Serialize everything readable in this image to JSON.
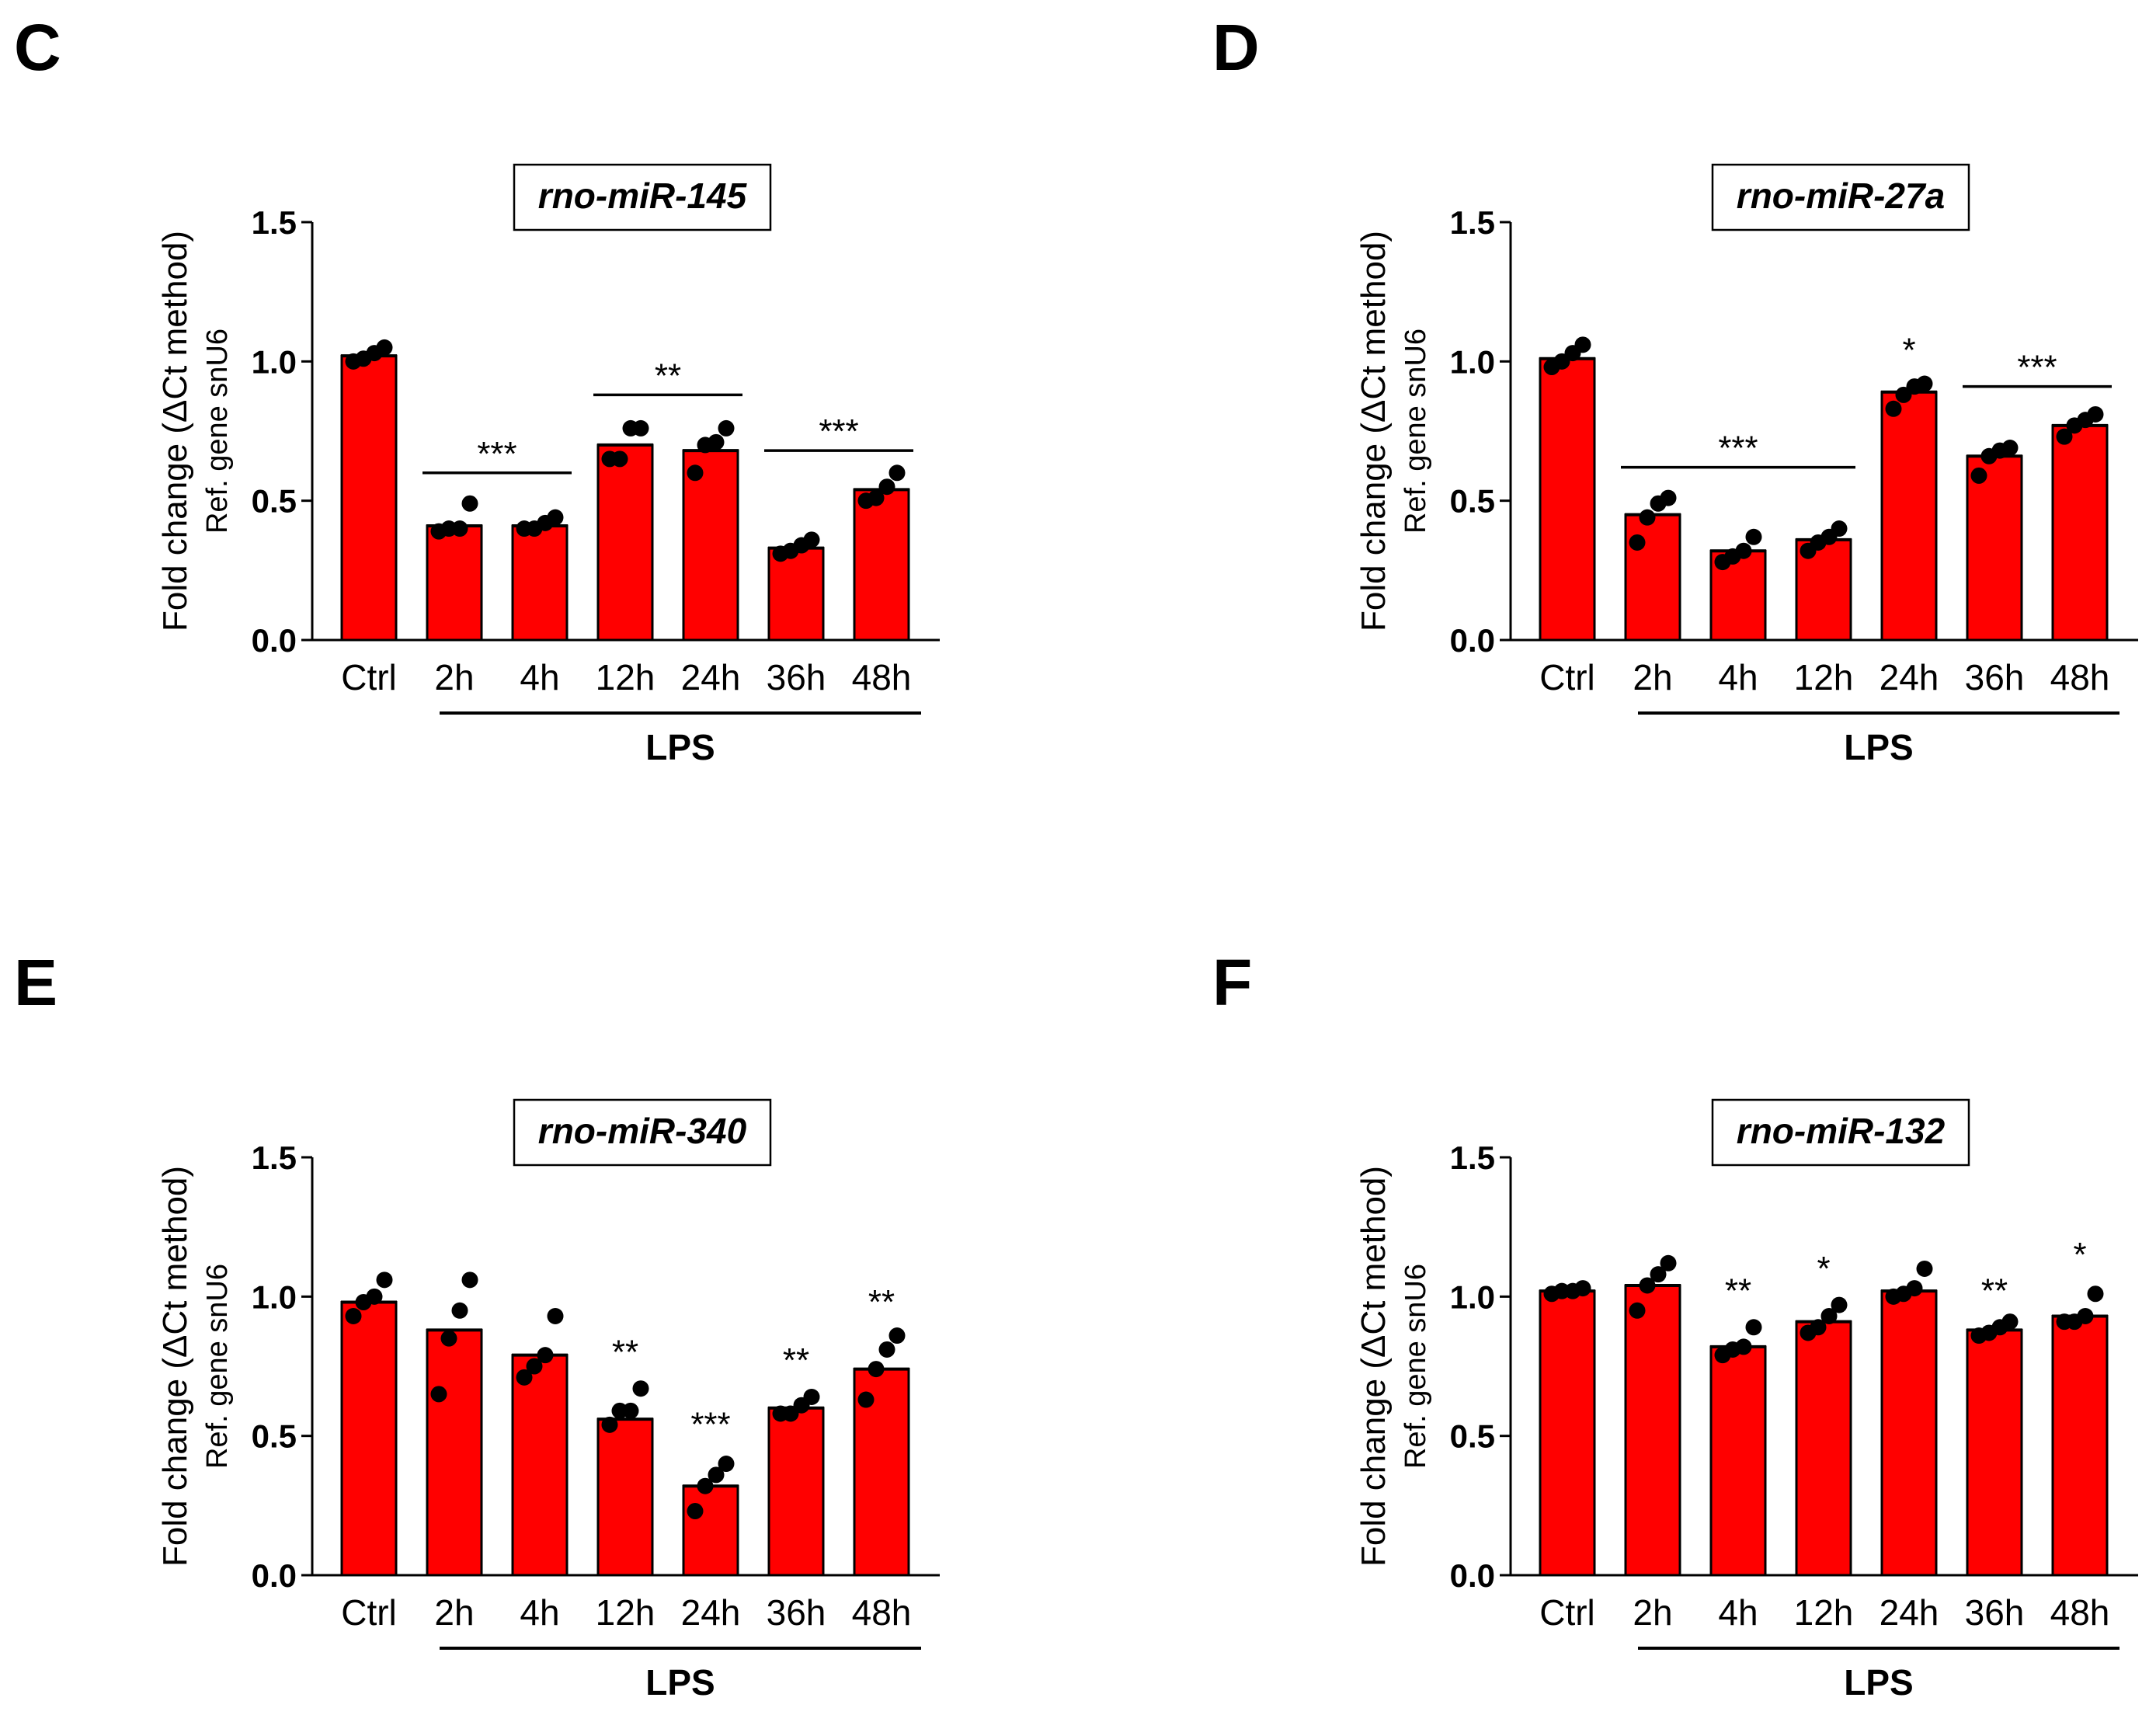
{
  "chart_data": [
    {
      "type": "bar",
      "panel_letter": "C",
      "title": "rno-miR-145",
      "ylabel_line1": "Fold change (ΔCt method)",
      "ylabel_line2": "Ref. gene snU6",
      "categories": [
        "Ctrl",
        "2h",
        "4h",
        "12h",
        "24h",
        "36h",
        "48h"
      ],
      "values": [
        1.02,
        0.41,
        0.41,
        0.7,
        0.68,
        0.33,
        0.54
      ],
      "points": [
        [
          1.0,
          1.01,
          1.03,
          1.05
        ],
        [
          0.39,
          0.4,
          0.4,
          0.49
        ],
        [
          0.4,
          0.4,
          0.42,
          0.44
        ],
        [
          0.65,
          0.65,
          0.76,
          0.76
        ],
        [
          0.6,
          0.7,
          0.71,
          0.76
        ],
        [
          0.31,
          0.32,
          0.34,
          0.36
        ],
        [
          0.5,
          0.51,
          0.55,
          0.6
        ]
      ],
      "ylim": [
        0,
        1.5
      ],
      "yticks": [
        "0.0",
        "0.5",
        "1.0",
        "1.5"
      ],
      "group_label": "LPS",
      "significance": [
        {
          "label": "***",
          "type": "line",
          "from": 1,
          "to": 2,
          "y": 0.6
        },
        {
          "label": "**",
          "type": "line",
          "from": 3,
          "to": 4,
          "y": 0.88
        },
        {
          "label": "***",
          "type": "line",
          "from": 5,
          "to": 6,
          "y": 0.68
        }
      ],
      "bar_color": "#ff0000",
      "point_color": "#000000"
    },
    {
      "type": "bar",
      "panel_letter": "D",
      "title": "rno-miR-27a",
      "ylabel_line1": "Fold change (ΔCt method)",
      "ylabel_line2": "Ref. gene snU6",
      "categories": [
        "Ctrl",
        "2h",
        "4h",
        "12h",
        "24h",
        "36h",
        "48h"
      ],
      "values": [
        1.01,
        0.45,
        0.32,
        0.36,
        0.89,
        0.66,
        0.77
      ],
      "points": [
        [
          0.98,
          1.0,
          1.03,
          1.06
        ],
        [
          0.35,
          0.44,
          0.49,
          0.51
        ],
        [
          0.28,
          0.3,
          0.32,
          0.37
        ],
        [
          0.32,
          0.35,
          0.37,
          0.4
        ],
        [
          0.83,
          0.88,
          0.91,
          0.92
        ],
        [
          0.59,
          0.66,
          0.68,
          0.69
        ],
        [
          0.73,
          0.77,
          0.79,
          0.81
        ]
      ],
      "ylim": [
        0,
        1.5
      ],
      "yticks": [
        "0.0",
        "0.5",
        "1.0",
        "1.5"
      ],
      "group_label": "LPS",
      "significance": [
        {
          "label": "***",
          "type": "line",
          "from": 1,
          "to": 3,
          "y": 0.62
        },
        {
          "label": "*",
          "type": "text",
          "at": 4,
          "y": 1.0
        },
        {
          "label": "***",
          "type": "line",
          "from": 5,
          "to": 6,
          "y": 0.91
        }
      ],
      "bar_color": "#ff0000",
      "point_color": "#000000"
    },
    {
      "type": "bar",
      "panel_letter": "E",
      "title": "rno-miR-340",
      "ylabel_line1": "Fold change (ΔCt method)",
      "ylabel_line2": "Ref. gene snU6",
      "categories": [
        "Ctrl",
        "2h",
        "4h",
        "12h",
        "24h",
        "36h",
        "48h"
      ],
      "values": [
        0.98,
        0.88,
        0.79,
        0.56,
        0.32,
        0.6,
        0.74
      ],
      "points": [
        [
          0.93,
          0.98,
          1.0,
          1.06
        ],
        [
          0.65,
          0.85,
          0.95,
          1.06
        ],
        [
          0.71,
          0.75,
          0.79,
          0.93
        ],
        [
          0.54,
          0.59,
          0.59,
          0.67
        ],
        [
          0.23,
          0.32,
          0.36,
          0.4
        ],
        [
          0.58,
          0.58,
          0.61,
          0.64
        ],
        [
          0.63,
          0.74,
          0.81,
          0.86
        ]
      ],
      "ylim": [
        0,
        1.5
      ],
      "yticks": [
        "0.0",
        "0.5",
        "1.0",
        "1.5"
      ],
      "group_label": "LPS",
      "significance": [
        {
          "label": "**",
          "type": "text",
          "at": 3,
          "y": 0.76
        },
        {
          "label": "***",
          "type": "text",
          "at": 4,
          "y": 0.5
        },
        {
          "label": "**",
          "type": "text",
          "at": 5,
          "y": 0.73
        },
        {
          "label": "**",
          "type": "text",
          "at": 6,
          "y": 0.94
        }
      ],
      "bar_color": "#ff0000",
      "point_color": "#000000"
    },
    {
      "type": "bar",
      "panel_letter": "F",
      "title": "rno-miR-132",
      "ylabel_line1": "Fold change (ΔCt method)",
      "ylabel_line2": "Ref. gene snU6",
      "categories": [
        "Ctrl",
        "2h",
        "4h",
        "12h",
        "24h",
        "36h",
        "48h"
      ],
      "values": [
        1.02,
        1.04,
        0.82,
        0.91,
        1.02,
        0.88,
        0.93
      ],
      "points": [
        [
          1.01,
          1.02,
          1.02,
          1.03
        ],
        [
          0.95,
          1.04,
          1.08,
          1.12
        ],
        [
          0.79,
          0.81,
          0.82,
          0.89
        ],
        [
          0.87,
          0.89,
          0.93,
          0.97
        ],
        [
          1.0,
          1.01,
          1.03,
          1.1
        ],
        [
          0.86,
          0.87,
          0.89,
          0.91
        ],
        [
          0.91,
          0.91,
          0.93,
          1.01
        ]
      ],
      "ylim": [
        0,
        1.5
      ],
      "yticks": [
        "0.0",
        "0.5",
        "1.0",
        "1.5"
      ],
      "group_label": "LPS",
      "significance": [
        {
          "label": "**",
          "type": "text",
          "at": 2,
          "y": 0.98
        },
        {
          "label": "*",
          "type": "text",
          "at": 3,
          "y": 1.06
        },
        {
          "label": "**",
          "type": "text",
          "at": 5,
          "y": 0.98
        },
        {
          "label": "*",
          "type": "text",
          "at": 6,
          "y": 1.11
        }
      ],
      "bar_color": "#ff0000",
      "point_color": "#000000"
    }
  ]
}
